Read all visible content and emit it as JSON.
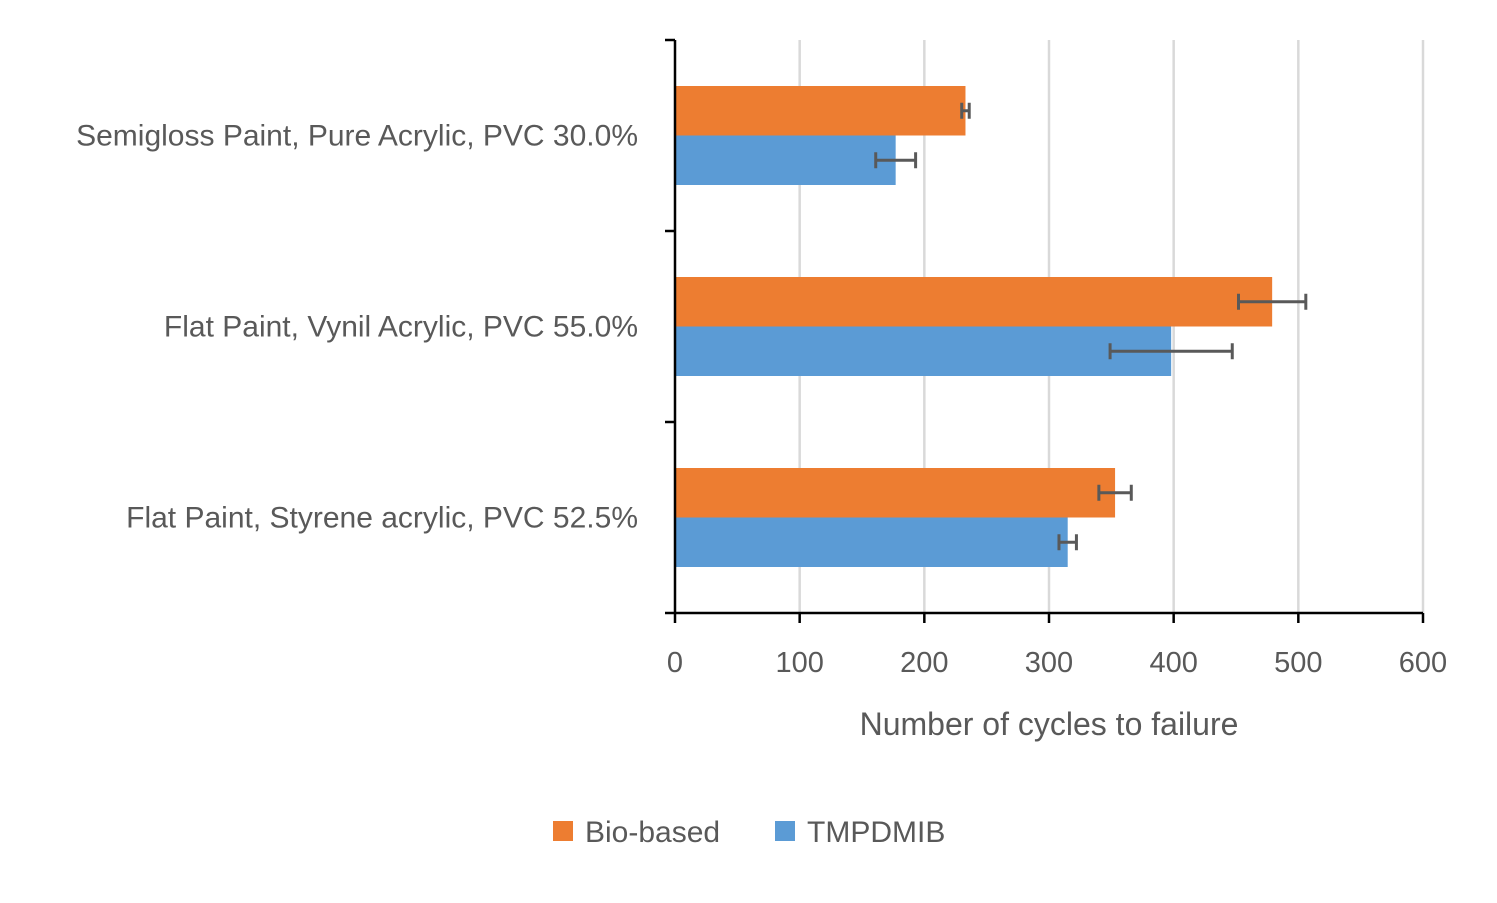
{
  "chart_data": {
    "type": "bar",
    "orientation": "horizontal",
    "categories": [
      "Semigloss Paint, Pure Acrylic, PVC 30.0%",
      "Flat Paint, Vynil Acrylic, PVC 55.0%",
      "Flat Paint, Styrene acrylic, PVC 52.5%"
    ],
    "series": [
      {
        "name": "Bio-based",
        "color": "#ED7D31",
        "values": [
          233,
          479,
          353
        ],
        "errors": [
          3,
          27,
          13
        ]
      },
      {
        "name": "TMPDMIB",
        "color": "#5B9BD5",
        "values": [
          177,
          398,
          315
        ],
        "errors": [
          16,
          49,
          7
        ]
      }
    ],
    "xlabel": "Number of cycles to failure",
    "ylabel": "",
    "title": "",
    "xlim": [
      0,
      600
    ],
    "xticks": [
      "0",
      "100",
      "200",
      "300",
      "400",
      "500",
      "600"
    ],
    "grid": "vertical",
    "legend_position": "bottom"
  }
}
